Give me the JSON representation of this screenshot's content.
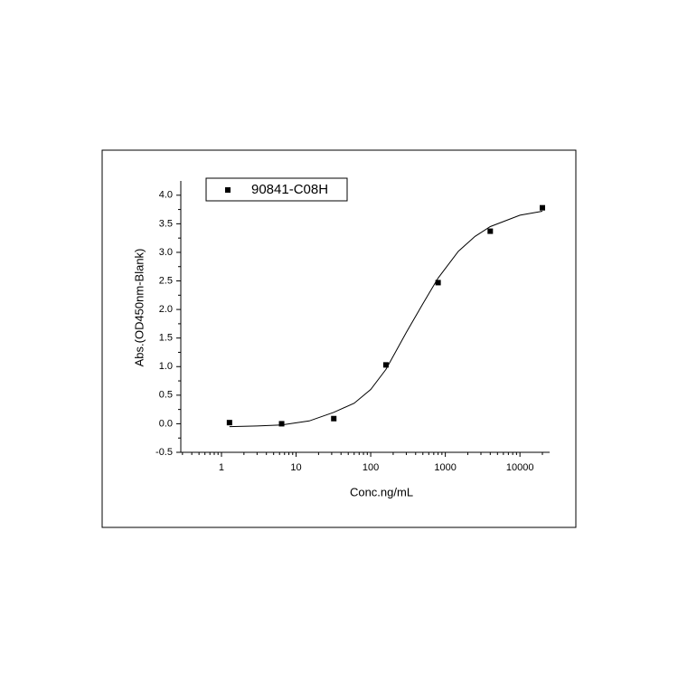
{
  "chart_data": {
    "type": "scatter",
    "xlabel": "Conc.ng/mL",
    "ylabel": "Abs.(OD450nm-Blank)",
    "x": [
      1.28,
      6.4,
      32,
      160,
      800,
      4000,
      20000
    ],
    "series": [
      {
        "name": "90841-C08H",
        "color": "#000000",
        "values": [
          0.02,
          0.0,
          0.09,
          1.03,
          2.47,
          3.37,
          3.78
        ]
      }
    ],
    "fit": {
      "x": [
        1.28,
        3,
        6.4,
        15,
        32,
        60,
        100,
        160,
        300,
        500,
        800,
        1500,
        2500,
        4000,
        10000,
        20000
      ],
      "values": [
        -0.05,
        -0.04,
        -0.02,
        0.05,
        0.2,
        0.36,
        0.6,
        0.95,
        1.6,
        2.1,
        2.55,
        3.02,
        3.28,
        3.45,
        3.65,
        3.72
      ],
      "color": "#000000"
    },
    "xscale": "log",
    "xlim": [
      0.285,
      25000
    ],
    "xticks": [
      1,
      10,
      100,
      1000,
      10000
    ],
    "ylim": [
      -0.5,
      4.25
    ],
    "yticks": [
      {
        "value": -0.5,
        "label": "-0.5"
      },
      {
        "value": 0,
        "label": "0.0"
      },
      {
        "value": 0.5,
        "label": "0.5"
      },
      {
        "value": 1,
        "label": "1.0"
      },
      {
        "value": 1.5,
        "label": "1.5"
      },
      {
        "value": 2,
        "label": "2.0"
      },
      {
        "value": 2.5,
        "label": "2.5"
      },
      {
        "value": 3,
        "label": "3.0"
      },
      {
        "value": 3.5,
        "label": "3.5"
      },
      {
        "value": 4,
        "label": "4.0"
      }
    ],
    "legend": "upper-left",
    "grid": false
  }
}
